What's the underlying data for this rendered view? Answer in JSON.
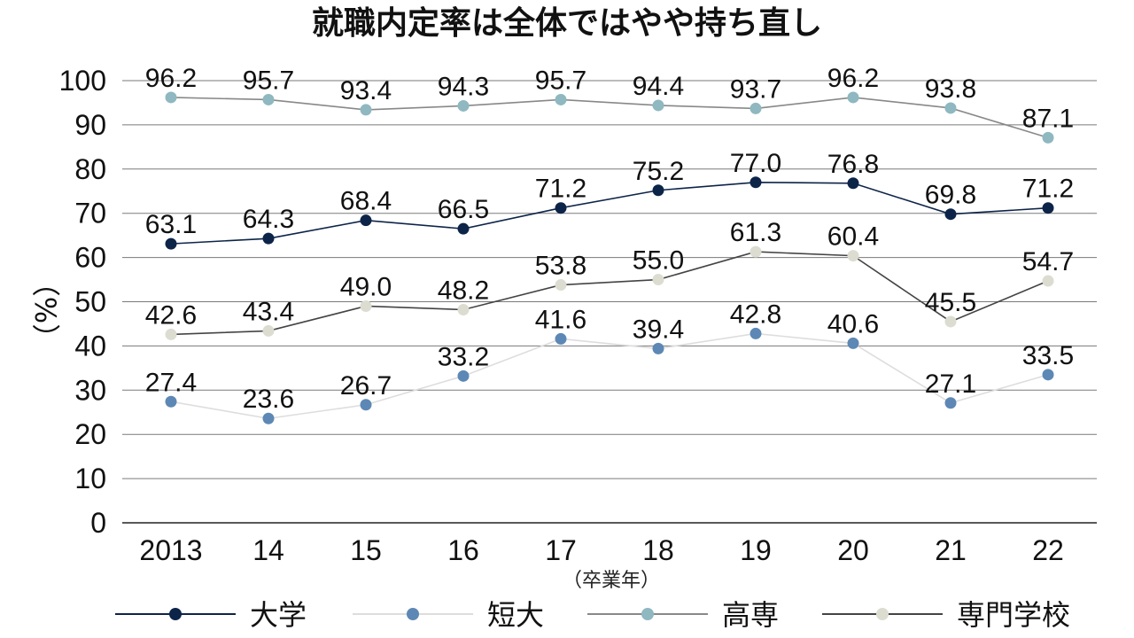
{
  "chart_data": {
    "type": "line",
    "title": "就職内定率は全体ではやや持ち直し",
    "ylabel": "（%）",
    "xlabel": "（卒業年）",
    "ylim": [
      0,
      100
    ],
    "yticks": [
      "0",
      "10",
      "20",
      "30",
      "40",
      "50",
      "60",
      "70",
      "80",
      "90",
      "100"
    ],
    "categories": [
      "2013",
      "14",
      "15",
      "16",
      "17",
      "18",
      "19",
      "20",
      "21",
      "22"
    ],
    "legend_position": "bottom",
    "series": [
      {
        "name": "大学",
        "color": "#0d2449",
        "line_color": "#0d2449",
        "values": [
          63.1,
          64.3,
          68.4,
          66.5,
          71.2,
          75.2,
          77.0,
          76.8,
          69.8,
          71.2
        ],
        "labels": [
          "63.1",
          "64.3",
          "68.4",
          "66.5",
          "71.2",
          "75.2",
          "77.0",
          "76.8",
          "69.8",
          "71.2"
        ]
      },
      {
        "name": "短大",
        "color": "#5d88b5",
        "line_color": "#dddddd",
        "values": [
          27.4,
          23.6,
          26.7,
          33.2,
          41.6,
          39.4,
          42.8,
          40.6,
          27.1,
          33.5
        ],
        "labels": [
          "27.4",
          "23.6",
          "26.7",
          "33.2",
          "41.6",
          "39.4",
          "42.8",
          "40.6",
          "27.1",
          "33.5"
        ]
      },
      {
        "name": "高専",
        "color": "#8fb8c1",
        "line_color": "#888888",
        "values": [
          96.2,
          95.7,
          93.4,
          94.3,
          95.7,
          94.4,
          93.7,
          96.2,
          93.8,
          87.1
        ],
        "labels": [
          "96.2",
          "95.7",
          "93.4",
          "94.3",
          "95.7",
          "94.4",
          "93.7",
          "96.2",
          "93.8",
          "87.1"
        ]
      },
      {
        "name": "専門学校",
        "color": "#dcddd0",
        "line_color": "#444444",
        "values": [
          42.6,
          43.4,
          49.0,
          48.2,
          53.8,
          55.0,
          61.3,
          60.4,
          45.5,
          54.7
        ],
        "labels": [
          "42.6",
          "43.4",
          "49.0",
          "48.2",
          "53.8",
          "55.0",
          "61.3",
          "60.4",
          "45.5",
          "54.7"
        ]
      }
    ]
  }
}
